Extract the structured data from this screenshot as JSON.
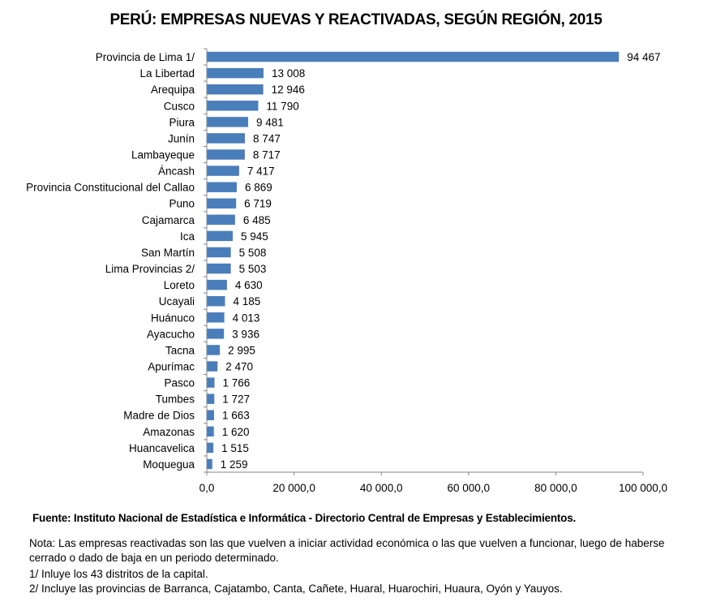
{
  "chart_data": {
    "type": "bar",
    "orientation": "horizontal",
    "title": "PERÚ: EMPRESAS NUEVAS Y REACTIVADAS, SEGÚN REGIÓN, 2015",
    "categories": [
      "Provincia de Lima 1/",
      "La Libertad",
      "Arequipa",
      "Cusco",
      "Piura",
      "Junín",
      "Lambayeque",
      "Áncash",
      "Provincia Constitucional del Callao",
      "Puno",
      "Cajamarca",
      "Ica",
      "San Martín",
      "Lima Provincias 2/",
      "Loreto",
      "Ucayali",
      "Huánuco",
      "Ayacucho",
      "Tacna",
      "Apurímac",
      "Pasco",
      "Tumbes",
      "Madre de Dios",
      "Amazonas",
      "Huancavelica",
      "Moquegua"
    ],
    "values": [
      94467,
      13008,
      12946,
      11790,
      9481,
      8747,
      8717,
      7417,
      6869,
      6719,
      6485,
      5945,
      5508,
      5503,
      4630,
      4185,
      4013,
      3936,
      2995,
      2470,
      1766,
      1727,
      1663,
      1620,
      1515,
      1259
    ],
    "value_labels": [
      "94 467",
      "13 008",
      "12 946",
      "11 790",
      "9 481",
      "8 747",
      "8 717",
      "7 417",
      "6 869",
      "6 719",
      "6 485",
      "5 945",
      "5 508",
      "5 503",
      "4 630",
      "4 185",
      "4 013",
      "3 936",
      "2 995",
      "2 470",
      "1 766",
      "1 727",
      "1 663",
      "1 620",
      "1 515",
      "1 259"
    ],
    "xlim": [
      0,
      100000
    ],
    "x_ticks": [
      0,
      20000,
      40000,
      60000,
      80000,
      100000
    ],
    "x_tick_labels": [
      "0,0",
      "20 000,0",
      "40 000,0",
      "60 000,0",
      "80 000,0",
      "100 000,0"
    ],
    "bar_color": "#4a7ebb",
    "grid": false,
    "legend": "none"
  },
  "source": "Fuente:  Instituto Nacional de Estadística e Informática - Directorio Central de Empresas y Establecimientos.",
  "notes": {
    "main": "Nota: Las empresas reactivadas son las que vuelven a iniciar actividad económica o las que vuelven a funcionar, luego de haberse cerrado o dado de baja en un periodo determinado.",
    "n1": "1/ Inluye los 43 distritos de la capital.",
    "n2": "2/ Incluye las provincias de Barranca, Cajatambo,  Canta, Cañete, Huaral, Huarochiri, Huaura, Oyón y Yauyos."
  }
}
